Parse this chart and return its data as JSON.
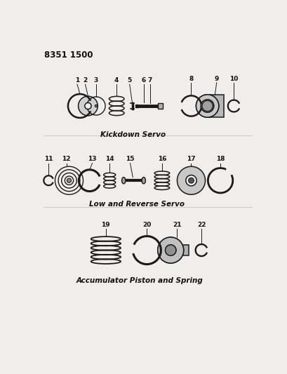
{
  "title_code": "8351 1500",
  "section1_label": "Kickdown Servo",
  "section2_label": "Low and Reverse Servo",
  "section3_label": "Accumulator Piston and Spring",
  "bg_color": "#f0eeea",
  "line_color": "#1a1a1a",
  "text_color": "#111111",
  "fig_width": 4.1,
  "fig_height": 5.33,
  "dpi": 100
}
